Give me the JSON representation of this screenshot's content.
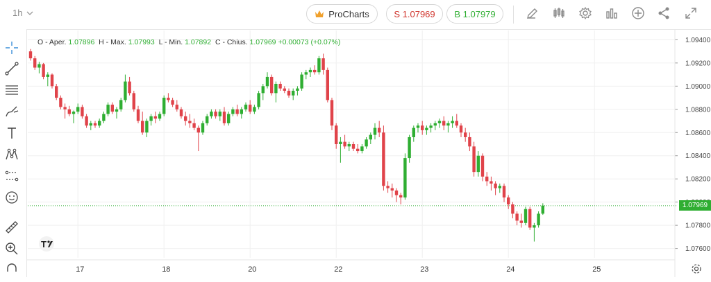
{
  "toolbar": {
    "timeframe": "1h",
    "pro_label": "ProCharts",
    "sell_label": "S 1.07969",
    "buy_label": "B 1.07979",
    "icons": [
      "pencil-icon",
      "candles-icon",
      "gear-icon",
      "bars-icon",
      "plus-circle-icon",
      "share-icon",
      "fullscreen-icon"
    ]
  },
  "sidebar": {
    "tools": [
      "crosshair-icon",
      "trendline-icon",
      "fib-lines-icon",
      "brush-icon",
      "text-icon",
      "pattern-icon",
      "measure-icon",
      "emoji-icon",
      "ruler-icon",
      "zoom-icon"
    ]
  },
  "ohlc": {
    "open_label": "O - Aper.",
    "open": "1.07896",
    "high_label": "H - Max.",
    "high": "1.07993",
    "low_label": "L - Min.",
    "low": "1.07892",
    "close_label": "C - Chius.",
    "close": "1.07969",
    "change": "+0.00073 (+0.07%)"
  },
  "current_price": "1.07969",
  "colors": {
    "up": "#2fae32",
    "down": "#e0434a",
    "grid": "#f0f0f0"
  },
  "chart_data": {
    "type": "candlestick",
    "ylim": [
      1.0752,
      1.0948
    ],
    "yticks": [
      "1.07600",
      "1.07800",
      "1.08000",
      "1.08200",
      "1.08400",
      "1.08600",
      "1.08800",
      "1.09000",
      "1.09200",
      "1.09400"
    ],
    "xticks": [
      {
        "label": "17",
        "index": 11
      },
      {
        "label": "18",
        "index": 31
      },
      {
        "label": "20",
        "index": 51
      },
      {
        "label": "22",
        "index": 71
      },
      {
        "label": "23",
        "index": 91
      },
      {
        "label": "24",
        "index": 111
      },
      {
        "label": "25",
        "index": 131
      }
    ],
    "candles": [
      [
        1.093,
        1.0932,
        1.0922,
        1.0924
      ],
      [
        1.0924,
        1.0926,
        1.0914,
        1.0916
      ],
      [
        1.0916,
        1.0921,
        1.0911,
        1.0919
      ],
      [
        1.0919,
        1.092,
        1.0906,
        1.0908
      ],
      [
        1.0908,
        1.0912,
        1.09,
        1.091
      ],
      [
        1.091,
        1.0911,
        1.0898,
        1.09
      ],
      [
        1.09,
        1.0902,
        1.0888,
        1.089
      ],
      [
        1.089,
        1.0892,
        1.088,
        1.0882
      ],
      [
        1.0882,
        1.0885,
        1.0872,
        1.088
      ],
      [
        1.088,
        1.0883,
        1.0874,
        1.0876
      ],
      [
        1.0876,
        1.0879,
        1.0868,
        1.0878
      ],
      [
        1.0878,
        1.0885,
        1.0876,
        1.0882
      ],
      [
        1.0882,
        1.0884,
        1.0872,
        1.0874
      ],
      [
        1.0874,
        1.0876,
        1.0864,
        1.0866
      ],
      [
        1.0866,
        1.087,
        1.0862,
        1.0868
      ],
      [
        1.0868,
        1.087,
        1.0864,
        1.0866
      ],
      [
        1.0866,
        1.0872,
        1.0864,
        1.087
      ],
      [
        1.087,
        1.0878,
        1.0868,
        1.0876
      ],
      [
        1.0876,
        1.0886,
        1.0874,
        1.0884
      ],
      [
        1.0884,
        1.0886,
        1.0876,
        1.0878
      ],
      [
        1.0878,
        1.0882,
        1.0872,
        1.088
      ],
      [
        1.088,
        1.089,
        1.0878,
        1.0888
      ],
      [
        1.0888,
        1.091,
        1.0886,
        1.0904
      ],
      [
        1.0904,
        1.0908,
        1.0892,
        1.0894
      ],
      [
        1.0894,
        1.0896,
        1.0878,
        1.088
      ],
      [
        1.088,
        1.0883,
        1.0868,
        1.087
      ],
      [
        1.087,
        1.0878,
        1.0858,
        1.086
      ],
      [
        1.086,
        1.0872,
        1.0856,
        1.087
      ],
      [
        1.087,
        1.0876,
        1.0866,
        1.0874
      ],
      [
        1.0874,
        1.0878,
        1.0868,
        1.0872
      ],
      [
        1.0872,
        1.0878,
        1.087,
        1.0876
      ],
      [
        1.0876,
        1.0892,
        1.0874,
        1.089
      ],
      [
        1.089,
        1.0894,
        1.0886,
        1.0888
      ],
      [
        1.0888,
        1.089,
        1.0882,
        1.0884
      ],
      [
        1.0884,
        1.0888,
        1.0878,
        1.088
      ],
      [
        1.088,
        1.0882,
        1.0872,
        1.0874
      ],
      [
        1.0874,
        1.0878,
        1.0866,
        1.087
      ],
      [
        1.087,
        1.0876,
        1.0864,
        1.0868
      ],
      [
        1.0868,
        1.0872,
        1.0862,
        1.0864
      ],
      [
        1.0864,
        1.0866,
        1.0844,
        1.086
      ],
      [
        1.086,
        1.087,
        1.0858,
        1.0868
      ],
      [
        1.0868,
        1.0876,
        1.0866,
        1.0874
      ],
      [
        1.0874,
        1.088,
        1.0872,
        1.0878
      ],
      [
        1.0878,
        1.088,
        1.0872,
        1.0874
      ],
      [
        1.0874,
        1.088,
        1.087,
        1.0878
      ],
      [
        1.0878,
        1.0882,
        1.0866,
        1.0868
      ],
      [
        1.0868,
        1.0878,
        1.0866,
        1.0876
      ],
      [
        1.0876,
        1.0882,
        1.0874,
        1.088
      ],
      [
        1.088,
        1.0884,
        1.0874,
        1.0876
      ],
      [
        1.0876,
        1.0882,
        1.0872,
        1.088
      ],
      [
        1.088,
        1.0886,
        1.0878,
        1.0884
      ],
      [
        1.0884,
        1.0888,
        1.0876,
        1.0878
      ],
      [
        1.0878,
        1.0884,
        1.0876,
        1.0882
      ],
      [
        1.0882,
        1.0896,
        1.088,
        1.0894
      ],
      [
        1.0894,
        1.0902,
        1.0888,
        1.09
      ],
      [
        1.09,
        1.0912,
        1.0898,
        1.0908
      ],
      [
        1.0908,
        1.091,
        1.0892,
        1.0894
      ],
      [
        1.0894,
        1.0904,
        1.0886,
        1.0902
      ],
      [
        1.0902,
        1.0904,
        1.0896,
        1.0898
      ],
      [
        1.0898,
        1.09,
        1.0894,
        1.0896
      ],
      [
        1.0896,
        1.0898,
        1.089,
        1.0892
      ],
      [
        1.0892,
        1.0898,
        1.0888,
        1.0896
      ],
      [
        1.0896,
        1.09,
        1.0892,
        1.0898
      ],
      [
        1.0898,
        1.0912,
        1.0896,
        1.091
      ],
      [
        1.091,
        1.0914,
        1.0906,
        1.0912
      ],
      [
        1.0912,
        1.0916,
        1.0908,
        1.0914
      ],
      [
        1.0914,
        1.0918,
        1.091,
        1.0912
      ],
      [
        1.0912,
        1.0926,
        1.091,
        1.0924
      ],
      [
        1.0924,
        1.0928,
        1.091,
        1.0914
      ],
      [
        1.0914,
        1.0916,
        1.0886,
        1.0888
      ],
      [
        1.0888,
        1.089,
        1.0862,
        1.0866
      ],
      [
        1.0866,
        1.0868,
        1.0846,
        1.085
      ],
      [
        1.085,
        1.0856,
        1.0834,
        1.0852
      ],
      [
        1.0852,
        1.0858,
        1.0846,
        1.0848
      ],
      [
        1.0848,
        1.0852,
        1.0844,
        1.085
      ],
      [
        1.085,
        1.0852,
        1.0844,
        1.0846
      ],
      [
        1.0846,
        1.085,
        1.0842,
        1.0844
      ],
      [
        1.0844,
        1.085,
        1.0842,
        1.0848
      ],
      [
        1.0848,
        1.0856,
        1.0846,
        1.0854
      ],
      [
        1.0854,
        1.086,
        1.085,
        1.0858
      ],
      [
        1.0858,
        1.0868,
        1.0854,
        1.0864
      ],
      [
        1.0864,
        1.087,
        1.0856,
        1.086
      ],
      [
        1.086,
        1.0866,
        1.081,
        1.0814
      ],
      [
        1.0814,
        1.0818,
        1.0808,
        1.0812
      ],
      [
        1.0812,
        1.0816,
        1.0804,
        1.081
      ],
      [
        1.081,
        1.0812,
        1.08,
        1.0806
      ],
      [
        1.0806,
        1.0808,
        1.0798,
        1.0804
      ],
      [
        1.0804,
        1.0842,
        1.0802,
        1.0838
      ],
      [
        1.0838,
        1.0858,
        1.0834,
        1.0856
      ],
      [
        1.0856,
        1.0866,
        1.0852,
        1.0864
      ],
      [
        1.0864,
        1.0868,
        1.086,
        1.0866
      ],
      [
        1.0866,
        1.087,
        1.0858,
        1.0862
      ],
      [
        1.0862,
        1.0866,
        1.0858,
        1.0864
      ],
      [
        1.0864,
        1.0868,
        1.086,
        1.0866
      ],
      [
        1.0866,
        1.087,
        1.0862,
        1.0868
      ],
      [
        1.0868,
        1.0872,
        1.0864,
        1.087
      ],
      [
        1.087,
        1.0874,
        1.0862,
        1.0866
      ],
      [
        1.0866,
        1.087,
        1.086,
        1.0868
      ],
      [
        1.0868,
        1.0874,
        1.0864,
        1.087
      ],
      [
        1.087,
        1.0876,
        1.0864,
        1.0866
      ],
      [
        1.0866,
        1.0868,
        1.0856,
        1.086
      ],
      [
        1.086,
        1.0864,
        1.0852,
        1.0856
      ],
      [
        1.0856,
        1.086,
        1.0844,
        1.0848
      ],
      [
        1.0848,
        1.0852,
        1.0822,
        1.0826
      ],
      [
        1.0826,
        1.0844,
        1.0822,
        1.084
      ],
      [
        1.084,
        1.0842,
        1.0818,
        1.0822
      ],
      [
        1.0822,
        1.0826,
        1.0814,
        1.0818
      ],
      [
        1.0818,
        1.0822,
        1.081,
        1.0816
      ],
      [
        1.0816,
        1.0818,
        1.0806,
        1.0812
      ],
      [
        1.0812,
        1.0816,
        1.0808,
        1.0814
      ],
      [
        1.0814,
        1.0816,
        1.08,
        1.0804
      ],
      [
        1.0804,
        1.0806,
        1.0794,
        1.0798
      ],
      [
        1.0798,
        1.08,
        1.0786,
        1.079
      ],
      [
        1.079,
        1.0792,
        1.078,
        1.0784
      ],
      [
        1.0784,
        1.079,
        1.0778,
        1.0782
      ],
      [
        1.0782,
        1.0796,
        1.078,
        1.0794
      ],
      [
        1.0794,
        1.0796,
        1.0776,
        1.0778
      ],
      [
        1.0778,
        1.0782,
        1.0766,
        1.078
      ],
      [
        1.078,
        1.0792,
        1.0778,
        1.079
      ],
      [
        1.079,
        1.0799,
        1.0789,
        1.0797
      ]
    ]
  }
}
